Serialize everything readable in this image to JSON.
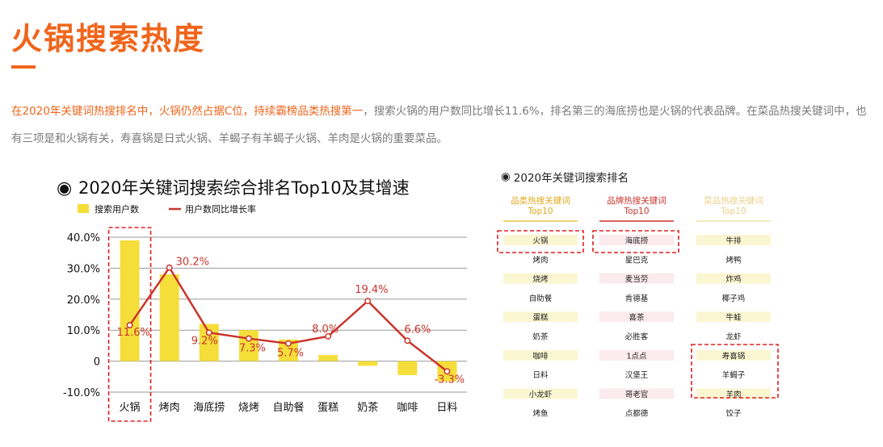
{
  "page": {
    "title": "火锅搜索热度",
    "paragraph_highlight": "在2020年关键词热搜排名中，火锅仍然占据C位，持续霸榜品类热搜第一",
    "paragraph_rest": "，搜索火锅的用户数同比增长11.6%，排名第三的海底捞也是火锅的代表品牌。在菜品热搜关键词中，也有三项是和火锅有关，寿喜锅是日式火锅、羊蝎子有羊蝎子火锅、羊肉是火锅的重要菜品。"
  },
  "chart_data": {
    "type": "bar",
    "title": "2020年关键词搜索综合排名Top10及其增速",
    "title_marker": "◉",
    "categories": [
      "火锅",
      "烤肉",
      "海底捞",
      "烧烤",
      "自助餐",
      "蛋糕",
      "奶茶",
      "咖啡",
      "日料"
    ],
    "series": [
      {
        "name": "搜索用户数",
        "kind": "bar",
        "color": "#f5de3a",
        "values": [
          39,
          28,
          12,
          10,
          7,
          2,
          -1.5,
          -4.5,
          -6.5
        ]
      },
      {
        "name": "用户数同比增长率",
        "kind": "line",
        "color": "#c9352d",
        "values": [
          11.6,
          30.2,
          9.2,
          7.3,
          5.7,
          8.0,
          19.4,
          6.6,
          -3.3
        ]
      }
    ],
    "line_labels": [
      "11.6%",
      "30.2%",
      "9.2%",
      "7.3%",
      "5.7%",
      "8.0%",
      "19.4%",
      "6.6%",
      "-3.3%"
    ],
    "ytick_labels": [
      "40.0%",
      "30.0%",
      "20.0%",
      "10.0%",
      "0",
      "-10.0%"
    ],
    "yticks": [
      40,
      30,
      20,
      10,
      0,
      -10
    ],
    "ylim": [
      -10,
      40
    ],
    "legend_position": "top-left",
    "grid": true,
    "highlight": "火锅"
  },
  "ranking_table": {
    "title": "2020年关键词搜索排名",
    "title_marker": "◉",
    "columns": [
      {
        "header_line1": "品类热搜关键词",
        "header_line2": "Top10",
        "header_color": "#e0a81c",
        "band_color": "#fbf6d2",
        "underline": "#e8c64a",
        "items": [
          "火锅",
          "烤肉",
          "烧烤",
          "自助餐",
          "蛋糕",
          "奶茶",
          "咖啡",
          "日料",
          "小龙虾",
          "烤鱼"
        ]
      },
      {
        "header_line1": "品牌热搜关键词",
        "header_line2": "Top10",
        "header_color": "#c9352d",
        "band_color": "#fbeaee",
        "underline": "#c9352d",
        "items": [
          "海底捞",
          "星巴克",
          "麦当劳",
          "肯德基",
          "喜茶",
          "必胜客",
          "1点点",
          "汉堡王",
          "哥老官",
          "点都德"
        ]
      },
      {
        "header_line1": "菜品热搜关键词",
        "header_line2": "Top10",
        "header_color": "#ecd08a",
        "band_color": "#fbf6d2",
        "underline": "#f1e2a6",
        "items": [
          "牛排",
          "烤鸭",
          "炸鸡",
          "椰子鸡",
          "牛蛙",
          "龙虾",
          "寿喜锅",
          "羊蝎子",
          "羊肉",
          "饺子"
        ]
      }
    ]
  }
}
